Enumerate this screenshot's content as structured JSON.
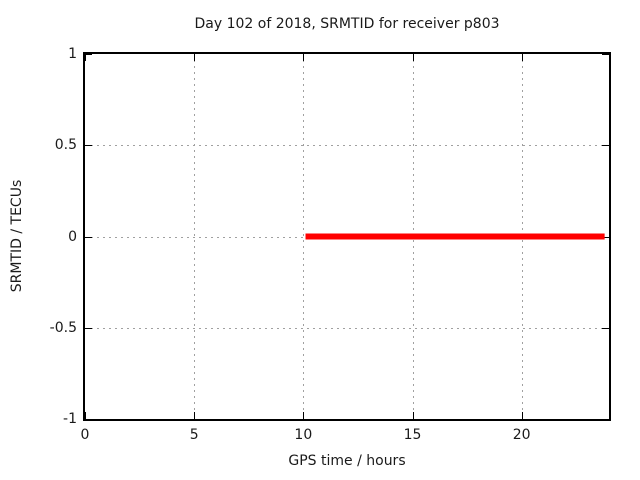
{
  "chart_data": {
    "type": "line",
    "title": "Day 102 of 2018, SRMTID for receiver p803",
    "xlabel": "GPS time / hours",
    "ylabel": "SRMTID / TECUs",
    "xlim": [
      0,
      24
    ],
    "ylim": [
      -1,
      1
    ],
    "xticks": [
      0,
      5,
      10,
      15,
      20
    ],
    "yticks": [
      -1,
      -0.5,
      0,
      0.5,
      1
    ],
    "grid": true,
    "legend_position": "none",
    "series": [
      {
        "name": "SRMTID",
        "color": "#ff0000",
        "linewidth": 6,
        "x": [
          10.1,
          23.8
        ],
        "y": [
          0,
          0
        ]
      }
    ]
  },
  "colors": {
    "background": "#ffffff",
    "border": "#000000",
    "grid": "#a0a0a0",
    "tick": "#000000",
    "series_red": "#ff0000",
    "text": "#1a1a1a"
  }
}
